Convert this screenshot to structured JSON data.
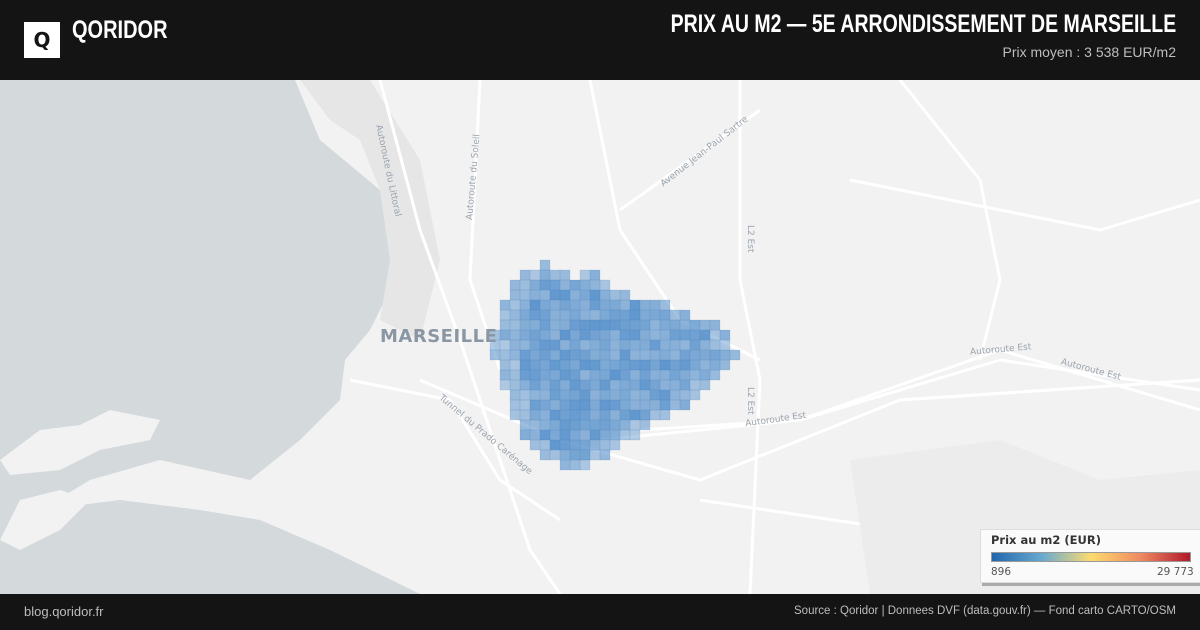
{
  "header": {
    "logo_letter": "Q",
    "brand": "QORIDOR",
    "title": "PRIX AU M2 — 5E ARRONDISSEMENT DE MARSEILLE",
    "subtitle": "Prix moyen : 3 538 EUR/m2"
  },
  "map": {
    "city_label": "MARSEILLE",
    "road_labels": [
      "Autoroute du Littoral",
      "Autoroute du Soleil",
      "Avenue Jean-Paul Sartre",
      "L2 Est",
      "Autoroute Est",
      "Autoroute Est",
      "Tunnel du Prado Carénage",
      "L2 Est",
      "Autoroute Est"
    ],
    "cell_color": "#4f8cc9",
    "sea_color": "#d4d9dc"
  },
  "legend": {
    "title": "Prix au m2 (EUR)",
    "min": "896",
    "max": "29 773",
    "colors": [
      "#2166ac",
      "#67a9cf",
      "#fddb6d",
      "#ef8a62",
      "#b2182b"
    ]
  },
  "footer": {
    "left": "blog.qoridor.fr",
    "right": "Source : Qoridor | Donnees DVF (data.gouv.fr) — Fond carto CARTO/OSM"
  }
}
